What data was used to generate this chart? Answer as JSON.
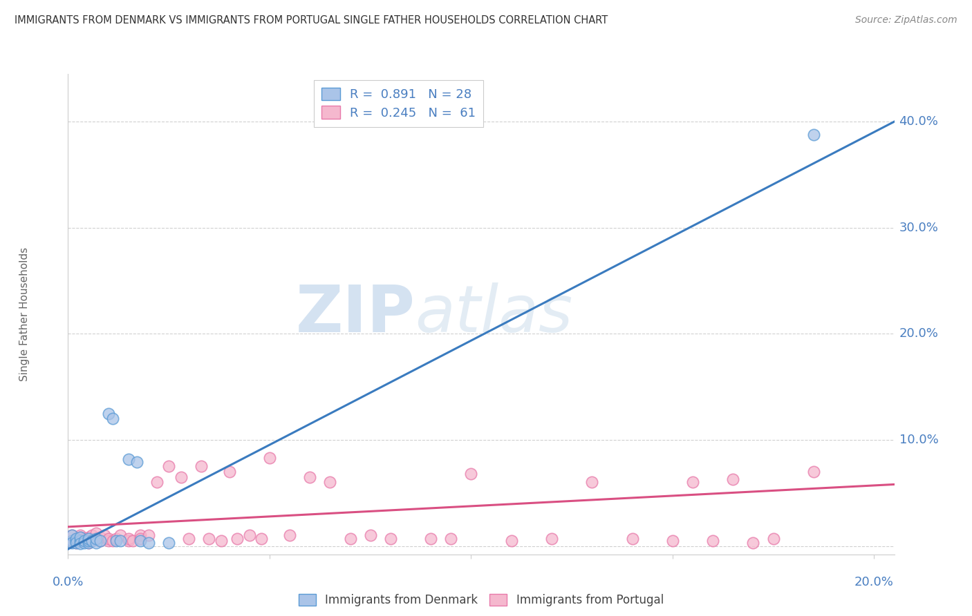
{
  "title": "IMMIGRANTS FROM DENMARK VS IMMIGRANTS FROM PORTUGAL SINGLE FATHER HOUSEHOLDS CORRELATION CHART",
  "source": "Source: ZipAtlas.com",
  "ylabel": "Single Father Households",
  "watermark_part1": "ZIP",
  "watermark_part2": "atlas",
  "denmark_color": "#aac4e8",
  "denmark_edge_color": "#5b9bd5",
  "denmark_line_color": "#3a7bbf",
  "portugal_color": "#f5b8ce",
  "portugal_edge_color": "#e87aaa",
  "portugal_line_color": "#d94f82",
  "denmark_R": 0.891,
  "denmark_N": 28,
  "portugal_R": 0.245,
  "portugal_N": 61,
  "xlim": [
    0.0,
    0.205
  ],
  "ylim": [
    -0.008,
    0.445
  ],
  "yticks": [
    0.0,
    0.1,
    0.2,
    0.3,
    0.4
  ],
  "xticks": [
    0.0,
    0.05,
    0.1,
    0.15,
    0.2
  ],
  "dk_line_x0": 0.0,
  "dk_line_y0": -0.003,
  "dk_line_x1": 0.205,
  "dk_line_y1": 0.4,
  "pt_line_x0": 0.0,
  "pt_line_y0": 0.018,
  "pt_line_x1": 0.205,
  "pt_line_y1": 0.058,
  "denmark_x": [
    0.001,
    0.001,
    0.001,
    0.002,
    0.002,
    0.002,
    0.003,
    0.003,
    0.003,
    0.004,
    0.004,
    0.005,
    0.005,
    0.005,
    0.006,
    0.007,
    0.007,
    0.008,
    0.01,
    0.011,
    0.012,
    0.013,
    0.015,
    0.017,
    0.018,
    0.02,
    0.025,
    0.185
  ],
  "denmark_y": [
    0.005,
    0.01,
    0.003,
    0.005,
    0.007,
    0.003,
    0.005,
    0.008,
    0.002,
    0.003,
    0.005,
    0.003,
    0.005,
    0.007,
    0.005,
    0.003,
    0.007,
    0.005,
    0.125,
    0.12,
    0.005,
    0.005,
    0.082,
    0.079,
    0.005,
    0.003,
    0.003,
    0.388
  ],
  "portugal_x": [
    0.001,
    0.001,
    0.002,
    0.002,
    0.003,
    0.003,
    0.003,
    0.004,
    0.004,
    0.005,
    0.005,
    0.006,
    0.006,
    0.007,
    0.007,
    0.008,
    0.008,
    0.009,
    0.01,
    0.01,
    0.011,
    0.012,
    0.013,
    0.015,
    0.015,
    0.016,
    0.018,
    0.018,
    0.02,
    0.022,
    0.025,
    0.028,
    0.03,
    0.033,
    0.035,
    0.038,
    0.04,
    0.042,
    0.045,
    0.048,
    0.05,
    0.055,
    0.06,
    0.065,
    0.07,
    0.075,
    0.08,
    0.09,
    0.095,
    0.1,
    0.11,
    0.12,
    0.13,
    0.14,
    0.15,
    0.155,
    0.16,
    0.165,
    0.17,
    0.175,
    0.185
  ],
  "portugal_y": [
    0.005,
    0.01,
    0.003,
    0.007,
    0.005,
    0.01,
    0.008,
    0.005,
    0.007,
    0.003,
    0.008,
    0.005,
    0.01,
    0.007,
    0.012,
    0.005,
    0.008,
    0.01,
    0.005,
    0.007,
    0.005,
    0.007,
    0.01,
    0.005,
    0.007,
    0.005,
    0.01,
    0.007,
    0.01,
    0.06,
    0.075,
    0.065,
    0.007,
    0.075,
    0.007,
    0.005,
    0.07,
    0.007,
    0.01,
    0.007,
    0.083,
    0.01,
    0.065,
    0.06,
    0.007,
    0.01,
    0.007,
    0.007,
    0.007,
    0.068,
    0.005,
    0.007,
    0.06,
    0.007,
    0.005,
    0.06,
    0.005,
    0.063,
    0.003,
    0.007,
    0.07
  ],
  "background_color": "#ffffff",
  "grid_color": "#d0d0d0",
  "axis_color": "#cccccc",
  "title_color": "#333333",
  "source_color": "#888888",
  "ylabel_color": "#666666",
  "ytick_color": "#4a7fc1",
  "xtick_color": "#4a7fc1"
}
